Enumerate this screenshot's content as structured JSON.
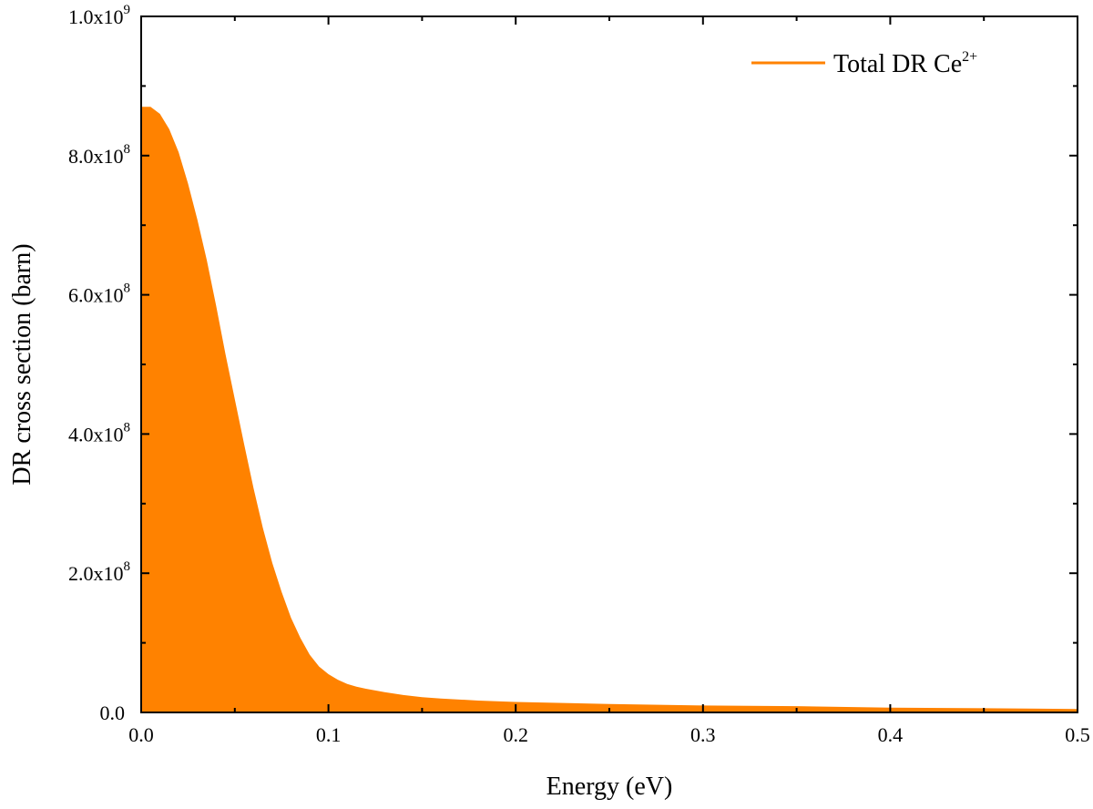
{
  "chart_data": {
    "type": "area",
    "xlabel": "Energy (eV)",
    "ylabel": "DR cross section (barn)",
    "xlim": [
      0,
      0.5
    ],
    "ylim": [
      0,
      1000000000
    ],
    "x_ticks": [
      {
        "value": 0.0,
        "label": "0.0"
      },
      {
        "value": 0.1,
        "label": "0.1"
      },
      {
        "value": 0.2,
        "label": "0.2"
      },
      {
        "value": 0.3,
        "label": "0.3"
      },
      {
        "value": 0.4,
        "label": "0.4"
      },
      {
        "value": 0.5,
        "label": "0.5"
      }
    ],
    "y_ticks": [
      {
        "value": 0,
        "mantissa": "0.0",
        "exponent": ""
      },
      {
        "value": 200000000,
        "mantissa": "2.0x10",
        "exponent": "8"
      },
      {
        "value": 400000000,
        "mantissa": "4.0x10",
        "exponent": "8"
      },
      {
        "value": 600000000,
        "mantissa": "6.0x10",
        "exponent": "8"
      },
      {
        "value": 800000000,
        "mantissa": "8.0x10",
        "exponent": "8"
      },
      {
        "value": 1000000000,
        "mantissa": "1.0x10",
        "exponent": "9"
      }
    ],
    "legend": {
      "position": "top-right",
      "label": "Total DR Ce",
      "superscript": "2+"
    },
    "grid": false,
    "series": [
      {
        "name": "Total DR Ce2+",
        "color": "#ff8200",
        "x": [
          0.0,
          0.005,
          0.01,
          0.015,
          0.02,
          0.025,
          0.03,
          0.035,
          0.04,
          0.045,
          0.05,
          0.055,
          0.06,
          0.065,
          0.07,
          0.075,
          0.08,
          0.085,
          0.09,
          0.095,
          0.1,
          0.105,
          0.11,
          0.115,
          0.12,
          0.13,
          0.14,
          0.15,
          0.16,
          0.18,
          0.2,
          0.25,
          0.3,
          0.35,
          0.4,
          0.45,
          0.5
        ],
        "y": [
          870000000,
          870000000,
          860000000,
          838000000,
          805000000,
          760000000,
          708000000,
          650000000,
          585000000,
          515000000,
          450000000,
          385000000,
          322000000,
          265000000,
          215000000,
          173000000,
          136000000,
          107000000,
          83000000,
          66000000,
          55000000,
          47000000,
          41000000,
          37000000,
          34000000,
          29000000,
          25000000,
          22000000,
          20000000,
          17000000,
          15000000,
          12000000,
          10000000,
          9000000,
          7000000,
          6000000,
          5000000
        ]
      }
    ]
  }
}
